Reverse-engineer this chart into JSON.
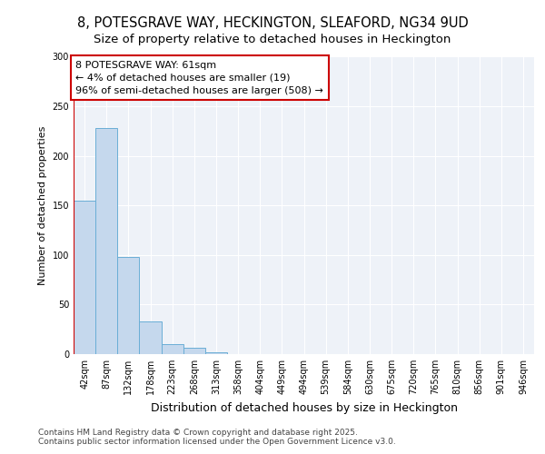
{
  "title1": "8, POTESGRAVE WAY, HECKINGTON, SLEAFORD, NG34 9UD",
  "title2": "Size of property relative to detached houses in Heckington",
  "xlabel": "Distribution of detached houses by size in Heckington",
  "ylabel": "Number of detached properties",
  "categories": [
    "42sqm",
    "87sqm",
    "132sqm",
    "178sqm",
    "223sqm",
    "268sqm",
    "313sqm",
    "358sqm",
    "404sqm",
    "449sqm",
    "494sqm",
    "539sqm",
    "584sqm",
    "630sqm",
    "675sqm",
    "720sqm",
    "765sqm",
    "810sqm",
    "856sqm",
    "901sqm",
    "946sqm"
  ],
  "values": [
    155,
    228,
    98,
    33,
    10,
    6,
    2,
    0,
    0,
    0,
    0,
    0,
    0,
    0,
    0,
    0,
    0,
    0,
    0,
    0,
    0
  ],
  "bar_color": "#c5d8ed",
  "bar_edge_color": "#6aaed6",
  "annotation_line1": "8 POTESGRAVE WAY: 61sqm",
  "annotation_line2": "← 4% of detached houses are smaller (19)",
  "annotation_line3": "96% of semi-detached houses are larger (508) →",
  "vline_color": "#cc0000",
  "annotation_box_color": "#cc0000",
  "ylim": [
    0,
    300
  ],
  "yticks": [
    0,
    50,
    100,
    150,
    200,
    250,
    300
  ],
  "footer1": "Contains HM Land Registry data © Crown copyright and database right 2025.",
  "footer2": "Contains public sector information licensed under the Open Government Licence v3.0.",
  "bg_color": "#eef2f8",
  "grid_color": "#ffffff",
  "title_fontsize": 10.5,
  "subtitle_fontsize": 9.5,
  "ylabel_fontsize": 8,
  "xlabel_fontsize": 9,
  "tick_fontsize": 7,
  "annotation_fontsize": 8,
  "footer_fontsize": 6.5
}
